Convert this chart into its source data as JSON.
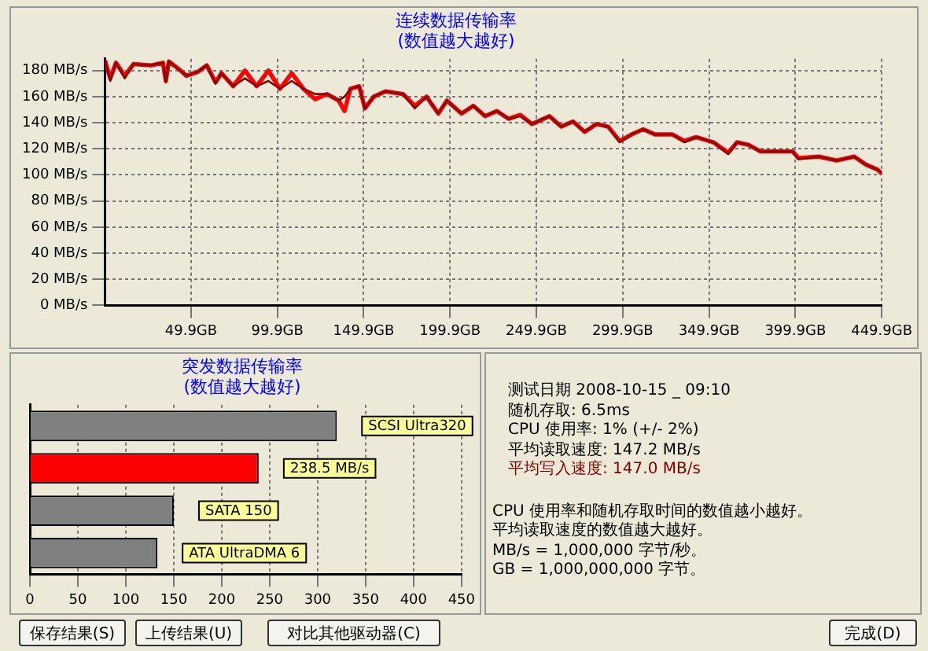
{
  "chart_data": [
    {
      "type": "line",
      "title": "连续数据传输率",
      "subtitle": "(数值越大越好)",
      "xlim": [
        0,
        449.9
      ],
      "ylim": [
        0,
        189
      ],
      "x": [
        0,
        3.1,
        6.4,
        11.5,
        16.6,
        26.8,
        33.6,
        35.3,
        37.0,
        43.8,
        47.2,
        53.9,
        59.0,
        64.1,
        67.5,
        74.3,
        81.1,
        87.9,
        94.7,
        101.4,
        108.2,
        115.0,
        121.8,
        128.6,
        135.4,
        138.8,
        142.2,
        147.3,
        150.6,
        155.7,
        162.5,
        172.7,
        179.5,
        186.3,
        193.1,
        198.1,
        206.6,
        213.4,
        220.2,
        227.0,
        233.8,
        240.6,
        247.4,
        257.5,
        264.3,
        271.1,
        277.9,
        284.7,
        291.5,
        298.2,
        305.0,
        311.8,
        318.6,
        328.8,
        335.6,
        342.4,
        352.5,
        361.0,
        366.1,
        372.9,
        379.7,
        386.5,
        398.3,
        401.7,
        413.6,
        423.8,
        434.0,
        440.7,
        447.5,
        449.9
      ],
      "xticks": [
        {
          "value": 49.9,
          "label": "49.9GB"
        },
        {
          "value": 99.9,
          "label": "99.9GB"
        },
        {
          "value": 149.9,
          "label": "149.9GB"
        },
        {
          "value": 199.9,
          "label": "199.9GB"
        },
        {
          "value": 249.9,
          "label": "249.9GB"
        },
        {
          "value": 299.9,
          "label": "299.9GB"
        },
        {
          "value": 349.9,
          "label": "349.9GB"
        },
        {
          "value": 399.9,
          "label": "399.9GB"
        },
        {
          "value": 449.9,
          "label": "449.9GB"
        }
      ],
      "yticks": [
        {
          "value": 0,
          "label": "0 MB/s"
        },
        {
          "value": 20,
          "label": "20 MB/s"
        },
        {
          "value": 40,
          "label": "40 MB/s"
        },
        {
          "value": 60,
          "label": "60 MB/s"
        },
        {
          "value": 80,
          "label": "80 MB/s"
        },
        {
          "value": 100,
          "label": "100 MB/s"
        },
        {
          "value": 120,
          "label": "120 MB/s"
        },
        {
          "value": 140,
          "label": "140 MB/s"
        },
        {
          "value": 160,
          "label": "160 MB/s"
        },
        {
          "value": 180,
          "label": "180 MB/s"
        }
      ],
      "grid": true,
      "series": [
        {
          "color": "#800000",
          "values": [
            188,
            172,
            186,
            174,
            185,
            184,
            186,
            171,
            187,
            180,
            176,
            179,
            184,
            170,
            178,
            168,
            174,
            168,
            172,
            166,
            172,
            166,
            162,
            162,
            157,
            160,
            166,
            168,
            151,
            160,
            164,
            162,
            151,
            160,
            147,
            157,
            147,
            153,
            145,
            149,
            143,
            145,
            139,
            145,
            137,
            141,
            133,
            139,
            137,
            125,
            131,
            135,
            131,
            131,
            125,
            129,
            125,
            116,
            125,
            123,
            118,
            118,
            118,
            112,
            114,
            111,
            114,
            108,
            104,
            102
          ]
        },
        {
          "color": "#ff0000",
          "values": [
            188,
            174,
            186,
            176,
            185,
            184,
            186,
            172,
            187,
            180,
            176,
            179,
            184,
            171,
            178,
            168,
            180,
            168,
            180,
            166,
            178,
            166,
            158,
            162,
            157,
            149,
            166,
            168,
            151,
            160,
            164,
            162,
            153,
            160,
            147,
            157,
            147,
            153,
            145,
            149,
            143,
            146,
            139,
            145,
            137,
            141,
            133,
            139,
            137,
            126,
            131,
            135,
            131,
            131,
            126,
            129,
            125,
            117,
            125,
            123,
            118,
            118,
            118,
            113,
            114,
            111,
            114,
            108,
            104,
            101
          ]
        }
      ]
    },
    {
      "type": "bar",
      "orientation": "horizontal",
      "title": "突发数据传输率",
      "subtitle": "(数值越大越好)",
      "categories": [
        "SCSI Ultra320",
        null,
        "SATA 150",
        "ATA UltraDMA 6"
      ],
      "values": [
        320,
        238.5,
        150,
        133
      ],
      "colors": [
        "#808080",
        "#ff0000",
        "#808080",
        "#808080"
      ],
      "value_labels": [
        null,
        "238.5 MB/s",
        null,
        null
      ],
      "xlim": [
        0,
        450
      ],
      "xticks": [
        0,
        50,
        100,
        150,
        200,
        250,
        300,
        350,
        400,
        450
      ],
      "grid": "x",
      "tick_labels": "x"
    },
    {
      "type": "other",
      "annotations": [
        "测试日期 2008-10-15 _ 09:10",
        "随机存取: 6.5ms",
        "CPU 使用率: 1% (+/- 2%)",
        "平均读取速度: 147.2 MB/s",
        "平均写入速度: 147.0 MB/s",
        "CPU 使用率和随机存取时间的数值越小越好。",
        "平均读取速度的数值越大越好。",
        "MB/s = 1,000,000 字节/秒。",
        "GB = 1,000,000,000 字节。"
      ]
    },
    {
      "type": "other",
      "annotations": [
        "保存结果(S)",
        "上传结果(U)",
        "对比其他驱动器(C)",
        "完成(D)"
      ]
    }
  ]
}
